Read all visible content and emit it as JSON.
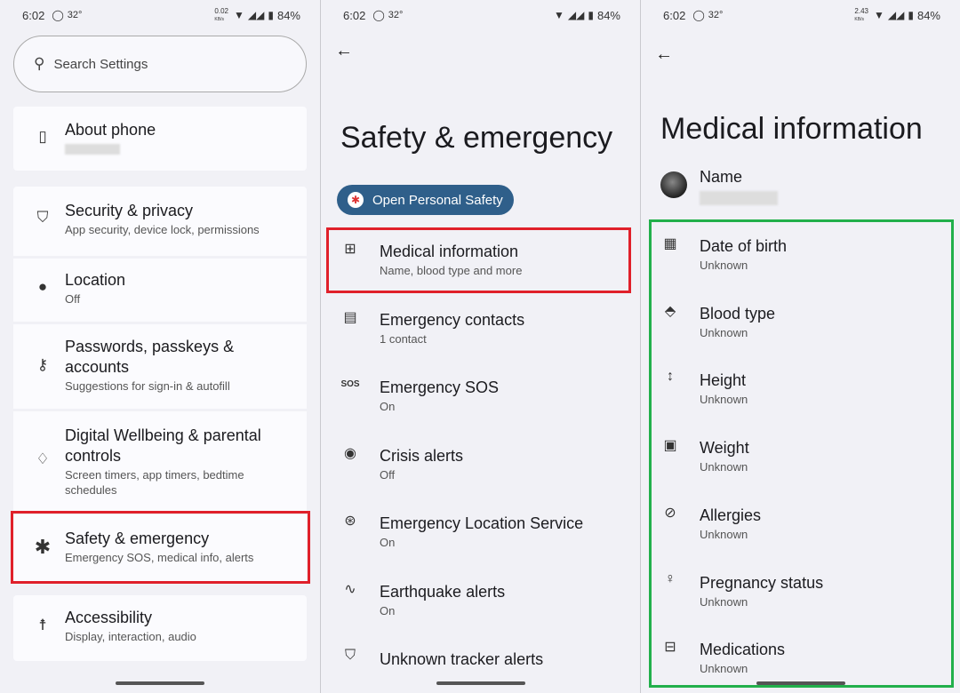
{
  "status_bars": [
    {
      "time": "6:02",
      "temp": "32°",
      "net": "0.02",
      "net_unit": "KB/s",
      "battery": "84%"
    },
    {
      "time": "6:02",
      "temp": "32°",
      "net": "",
      "net_unit": "",
      "battery": "84%"
    },
    {
      "time": "6:02",
      "temp": "32°",
      "net": "2.43",
      "net_unit": "KB/s",
      "battery": "84%"
    }
  ],
  "settings": {
    "search_placeholder": "Search Settings",
    "about": {
      "title": "About phone"
    },
    "items": [
      {
        "title": "Security & privacy",
        "subtitle": "App security, device lock, permissions",
        "icon": "shield-icon"
      },
      {
        "title": "Location",
        "subtitle": "Off",
        "icon": "location-pin-icon"
      },
      {
        "title": "Passwords, passkeys & accounts",
        "subtitle": "Suggestions for sign-in & autofill",
        "icon": "key-icon"
      },
      {
        "title": "Digital Wellbeing & parental controls",
        "subtitle": "Screen timers, app timers, bedtime schedules",
        "icon": "wellbeing-icon"
      },
      {
        "title": "Safety & emergency",
        "subtitle": "Emergency SOS, medical info, alerts",
        "icon": "asterisk-icon"
      },
      {
        "title": "Accessibility",
        "subtitle": "Display, interaction, audio",
        "icon": "accessibility-icon"
      }
    ]
  },
  "safety": {
    "title": "Safety & emergency",
    "open_button": "Open Personal Safety",
    "items": [
      {
        "title": "Medical information",
        "subtitle": "Name, blood type and more",
        "icon": "medical-id-icon"
      },
      {
        "title": "Emergency contacts",
        "subtitle": "1 contact",
        "icon": "contact-card-icon"
      },
      {
        "title": "Emergency SOS",
        "subtitle": "On",
        "icon": "sos-icon"
      },
      {
        "title": "Crisis alerts",
        "subtitle": "Off",
        "icon": "crisis-alert-icon"
      },
      {
        "title": "Emergency Location Service",
        "subtitle": "On",
        "icon": "emergency-location-icon"
      },
      {
        "title": "Earthquake alerts",
        "subtitle": "On",
        "icon": "earthquake-icon"
      },
      {
        "title": "Unknown tracker alerts",
        "subtitle": "",
        "icon": "tracker-shield-icon"
      }
    ]
  },
  "medical": {
    "title": "Medical information",
    "name_label": "Name",
    "items": [
      {
        "title": "Date of birth",
        "subtitle": "Unknown",
        "icon": "calendar-icon"
      },
      {
        "title": "Blood type",
        "subtitle": "Unknown",
        "icon": "blood-drop-icon"
      },
      {
        "title": "Height",
        "subtitle": "Unknown",
        "icon": "height-icon"
      },
      {
        "title": "Weight",
        "subtitle": "Unknown",
        "icon": "scale-icon"
      },
      {
        "title": "Allergies",
        "subtitle": "Unknown",
        "icon": "block-icon"
      },
      {
        "title": "Pregnancy status",
        "subtitle": "Unknown",
        "icon": "pregnancy-icon"
      },
      {
        "title": "Medications",
        "subtitle": "Unknown",
        "icon": "medication-icon"
      }
    ]
  },
  "colors": {
    "highlight_red": "#e0202a",
    "highlight_green": "#22b04b",
    "accent": "#2f5f8a"
  }
}
